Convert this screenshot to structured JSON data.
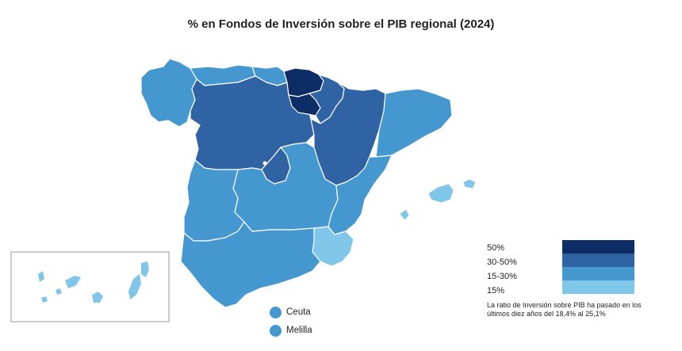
{
  "title": "% en Fondos de Inversión sobre el PIB regional (2024)",
  "colors": {
    "level_50": "#0e2c66",
    "level_30_50": "#2f63a4",
    "level_15_30": "#4498cf",
    "level_15": "#80c6e8",
    "region_border": "#ffffff",
    "canary_frame": "#999999"
  },
  "legend": {
    "items": [
      {
        "label": "50%",
        "color": "#0e2c66"
      },
      {
        "label": "30-50%",
        "color": "#2f63a4"
      },
      {
        "label": "15-30%",
        "color": "#4498cf"
      },
      {
        "label": "15%",
        "color": "#80c6e8"
      }
    ],
    "note": "La ratio de Inversión sobre PIB ha pasado en los últimos diez años del 18,4% al 25,1%"
  },
  "cities": [
    {
      "label": "Ceuta",
      "color": "#4498cf"
    },
    {
      "label": "Melilla",
      "color": "#4498cf"
    }
  ]
}
